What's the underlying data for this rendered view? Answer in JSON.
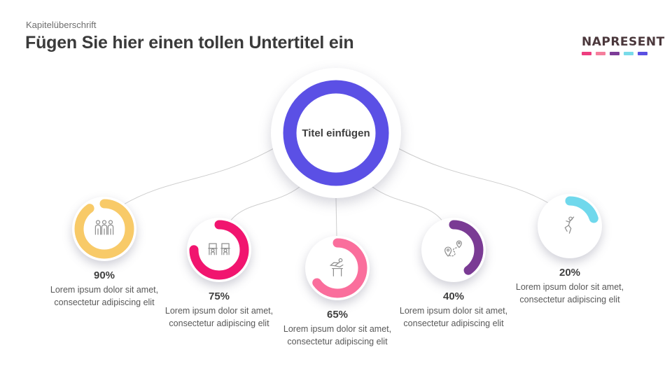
{
  "header": {
    "kicker": "Kapitelüberschrift",
    "title": "Fügen Sie hier einen tollen Untertitel ein"
  },
  "logo": {
    "text": "NAPRESENT",
    "dash_colors": [
      "#ee3d7f",
      "#f57e9c",
      "#7d3c98",
      "#78dbe9",
      "#5a50e2"
    ]
  },
  "center": {
    "label": "Titel einfügen",
    "ring_color": "#5b50e5"
  },
  "items": [
    {
      "percent": 90,
      "percent_label": "90%",
      "color": "#f8ca68",
      "icon": "team-icon",
      "desc_line1": "Lorem ipsum dolor sit amet,",
      "desc_line2": "consectetur adipiscing elit"
    },
    {
      "percent": 75,
      "percent_label": "75%",
      "color": "#f1156f",
      "icon": "workstations-icon",
      "desc_line1": "Lorem ipsum dolor sit amet,",
      "desc_line2": "consectetur adipiscing elit"
    },
    {
      "percent": 65,
      "percent_label": "65%",
      "color": "#fa6e9c",
      "icon": "hurdler-icon",
      "desc_line1": "Lorem ipsum dolor sit amet,",
      "desc_line2": "consectetur adipiscing elit"
    },
    {
      "percent": 40,
      "percent_label": "40%",
      "color": "#7a3b94",
      "icon": "route-icon",
      "desc_line1": "Lorem ipsum dolor sit amet,",
      "desc_line2": "consectetur adipiscing elit"
    },
    {
      "percent": 20,
      "percent_label": "20%",
      "color": "#70d8ec",
      "icon": "jumping-person-icon",
      "desc_line1": "Lorem ipsum dolor sit amet,",
      "desc_line2": "consectetur adipiscing elit"
    }
  ]
}
